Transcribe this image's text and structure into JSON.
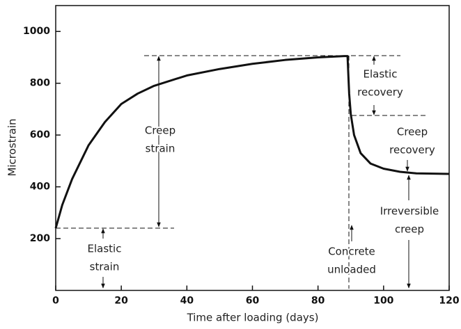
{
  "chart_data": {
    "type": "line",
    "x_label": "Time after loading (days)",
    "y_label": "Microstrain",
    "x": [
      0,
      2,
      5,
      10,
      15,
      20,
      25,
      30,
      40,
      50,
      60,
      70,
      80,
      88,
      89,
      89.5,
      90,
      91,
      93,
      96,
      100,
      105,
      110,
      120
    ],
    "series": [
      {
        "name": "Strain",
        "color": "#111111",
        "values": [
          240,
          330,
          430,
          560,
          650,
          720,
          760,
          790,
          830,
          855,
          875,
          890,
          900,
          905,
          905,
          760,
          680,
          600,
          530,
          490,
          470,
          458,
          452,
          450
        ]
      }
    ],
    "xlim": [
      0,
      120
    ],
    "xticks": [
      0,
      20,
      40,
      60,
      80,
      100,
      120
    ],
    "ylim": [
      0,
      1100
    ],
    "yticks": [
      200,
      400,
      600,
      800,
      1000
    ],
    "annotations": [
      [
        "Creep",
        "strain"
      ],
      [
        "Elastic",
        "strain"
      ],
      [
        "Elastic",
        "recovery"
      ],
      [
        "Creep",
        "recovery"
      ],
      [
        "Irreversible",
        "creep"
      ],
      [
        "Concrete",
        "unloaded"
      ]
    ]
  }
}
